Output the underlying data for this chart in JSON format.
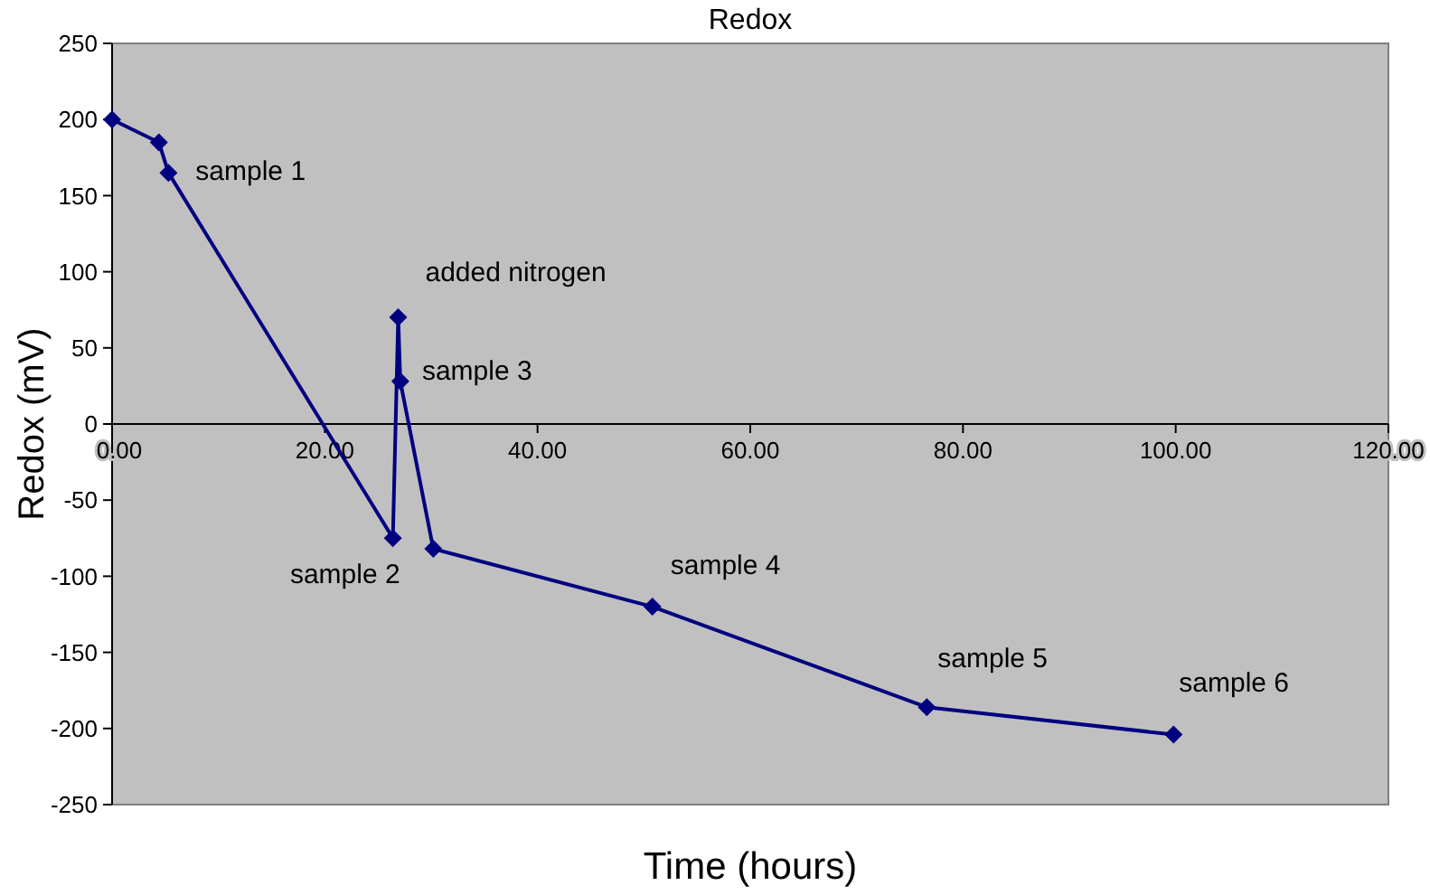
{
  "chart_data": {
    "type": "line",
    "title": "Redox",
    "xlabel": "Time (hours)",
    "ylabel": "Redox (mV)",
    "x": [
      0,
      4.4,
      5.3,
      26.4,
      26.9,
      27.1,
      30.2,
      50.8,
      76.6,
      99.8
    ],
    "series": [
      {
        "color": "#000080",
        "values": [
          200,
          185,
          165,
          -75,
          70,
          28,
          -82,
          -120,
          -186,
          -204
        ]
      }
    ],
    "xlim": [
      0,
      120
    ],
    "xticks": [
      {
        "value": 0,
        "label": "0.00"
      },
      {
        "value": 20,
        "label": "20.00"
      },
      {
        "value": 40,
        "label": "40.00"
      },
      {
        "value": 60,
        "label": "60.00"
      },
      {
        "value": 80,
        "label": "80.00"
      },
      {
        "value": 100,
        "label": "100.00"
      },
      {
        "value": 120,
        "label": "120.00"
      }
    ],
    "ylim": [
      -250,
      250
    ],
    "yticks": [
      -250,
      -200,
      -150,
      -100,
      -50,
      0,
      50,
      100,
      150,
      200,
      250
    ],
    "marker": "diamond",
    "line_style": "solid",
    "annotations": [
      {
        "text": "sample 1",
        "x": 5.3,
        "y": 165
      },
      {
        "text": "sample 2",
        "x": 26.4,
        "y": -75
      },
      {
        "text": "added nitrogen",
        "x": 26.9,
        "y": 70
      },
      {
        "text": "sample 3",
        "x": 27.1,
        "y": 28
      },
      {
        "text": "sample 4",
        "x": 50.8,
        "y": -120
      },
      {
        "text": "sample 5",
        "x": 76.6,
        "y": -186
      },
      {
        "text": "sample 6",
        "x": 99.8,
        "y": -204
      }
    ]
  }
}
